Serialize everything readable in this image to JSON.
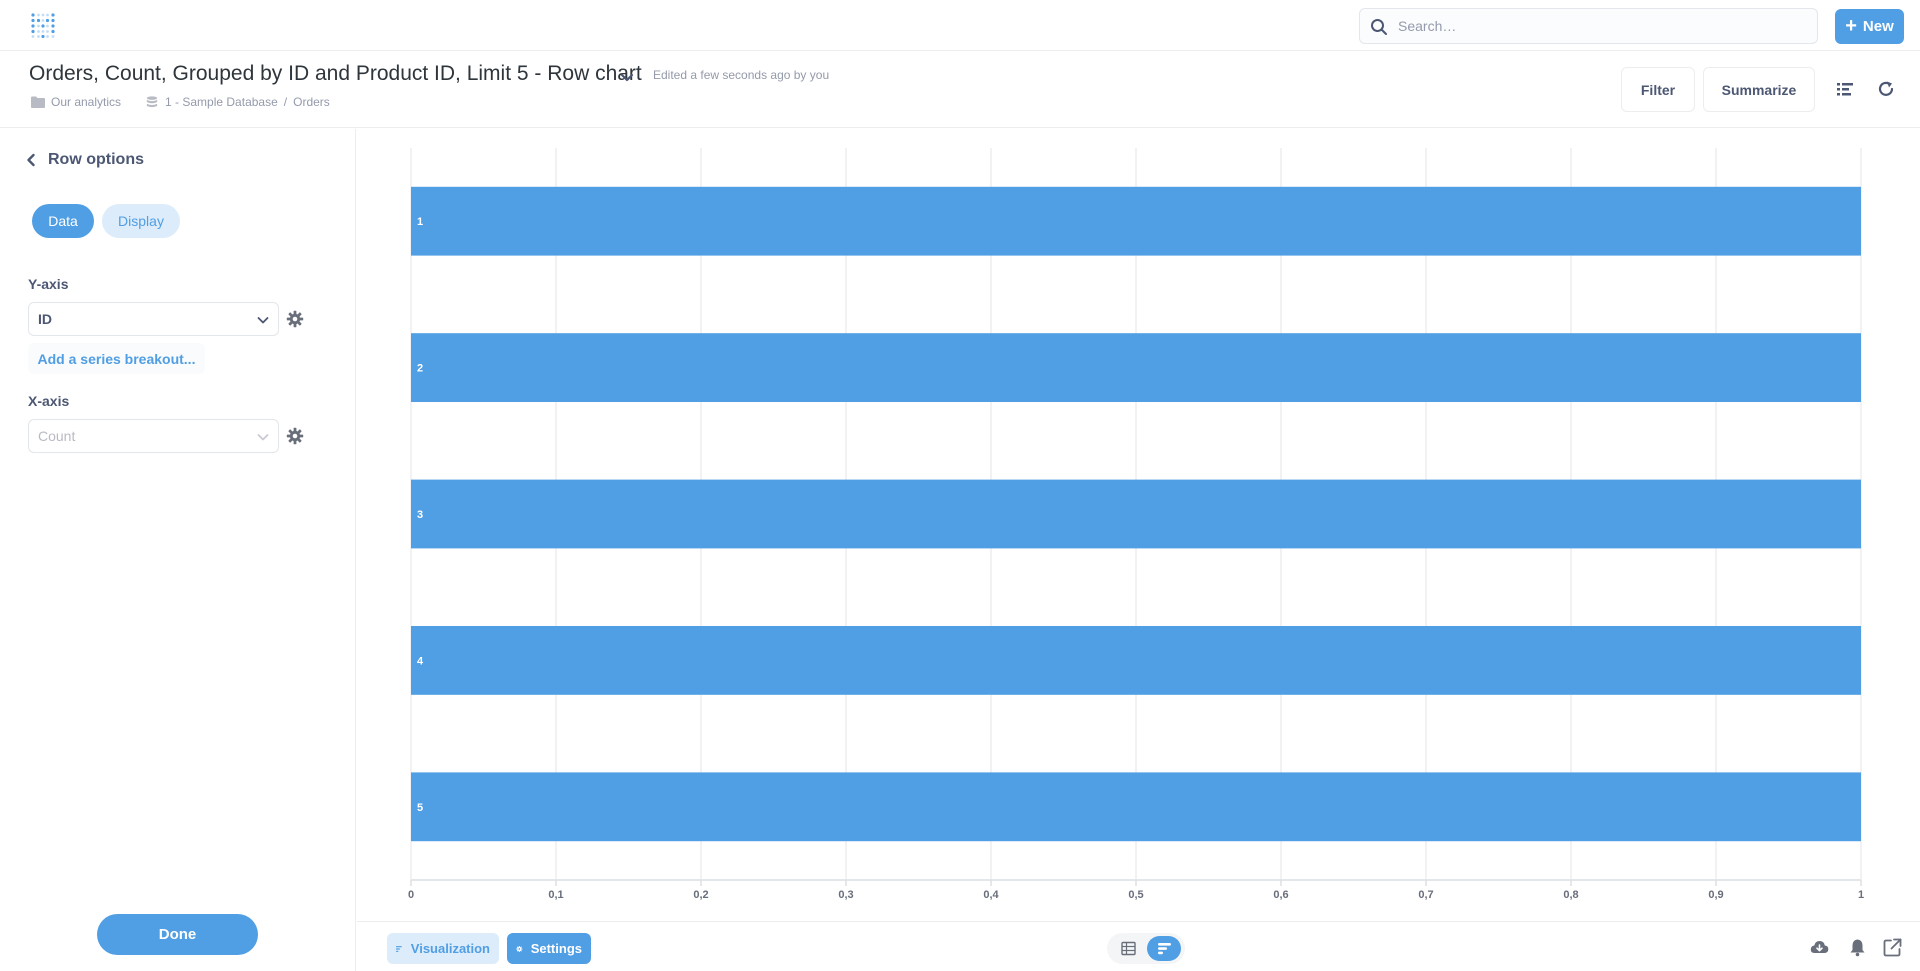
{
  "nav": {
    "logo": "metabase-logo",
    "search_placeholder": "Search…",
    "new_label": "New"
  },
  "header": {
    "title": "Orders, Count, Grouped by ID and Product ID, Limit 5 - Row chart",
    "edited": "Edited a few seconds ago by you",
    "breadcrumbs": {
      "collection": "Our analytics",
      "database": "1 - Sample Database",
      "sep": "/",
      "table": "Orders"
    },
    "filter_label": "Filter",
    "summarize_label": "Summarize"
  },
  "sidebar": {
    "back_label": "Row options",
    "tabs": {
      "data": "Data",
      "display": "Display"
    },
    "yaxis_label": "Y-axis",
    "yaxis_value": "ID",
    "add_series_label": "Add a series breakout...",
    "xaxis_label": "X-axis",
    "xaxis_value": "Count",
    "done_label": "Done"
  },
  "footer": {
    "visualization_label": "Visualization",
    "settings_label": "Settings"
  },
  "colors": {
    "brand": "#509EE3",
    "text": "#4C5773",
    "muted": "#949AAB",
    "border": "#EEECEC"
  },
  "chart_data": {
    "type": "bar",
    "orientation": "horizontal",
    "categories": [
      "1",
      "2",
      "3",
      "4",
      "5"
    ],
    "values": [
      1,
      1,
      1,
      1,
      1
    ],
    "xlim": [
      0,
      1
    ],
    "xticks": [
      "0",
      "0,1",
      "0,2",
      "0,3",
      "0,4",
      "0,5",
      "0,6",
      "0,7",
      "0,8",
      "0,9",
      "1"
    ],
    "grid": true,
    "color": "#509EE3"
  }
}
